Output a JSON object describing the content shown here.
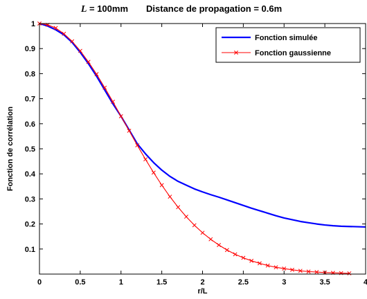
{
  "chart_data": {
    "type": "line",
    "title": {
      "symbol": "L",
      "eq": " = 100mm",
      "text": "Distance de propagation = 0.6m"
    },
    "xlabel": "r/L",
    "ylabel": "Fonction de corrélation",
    "xlim": [
      0,
      4
    ],
    "ylim": [
      0,
      1
    ],
    "xticks": [
      0,
      0.5,
      1,
      1.5,
      2,
      2.5,
      3,
      3.5,
      4
    ],
    "xtick_labels": [
      "0",
      "0.5",
      "1",
      "1.5",
      "2",
      "2.5",
      "3",
      "3.5",
      "4"
    ],
    "yticks": [
      0.1,
      0.2,
      0.3,
      0.4,
      0.5,
      0.6,
      0.7,
      0.8,
      0.9,
      1
    ],
    "ytick_labels": [
      "0.1",
      "0.2",
      "0.3",
      "0.4",
      "0.5",
      "0.6",
      "0.7",
      "0.8",
      "0.9",
      "1"
    ],
    "grid": false,
    "legend_position": "top-right",
    "series": [
      {
        "name": "Fonction simulée",
        "color": "#0000ff",
        "marker": "none",
        "x": [
          0,
          0.1,
          0.2,
          0.3,
          0.4,
          0.5,
          0.6,
          0.7,
          0.8,
          0.9,
          1.0,
          1.1,
          1.2,
          1.3,
          1.4,
          1.5,
          1.6,
          1.7,
          1.8,
          1.9,
          2.0,
          2.1,
          2.2,
          2.3,
          2.4,
          2.5,
          2.6,
          2.7,
          2.8,
          2.9,
          3.0,
          3.1,
          3.2,
          3.3,
          3.4,
          3.5,
          3.6,
          3.7,
          3.8,
          3.9,
          4.0
        ],
        "y": [
          1.0,
          0.99,
          0.975,
          0.955,
          0.925,
          0.885,
          0.84,
          0.79,
          0.735,
          0.68,
          0.63,
          0.575,
          0.52,
          0.48,
          0.445,
          0.415,
          0.39,
          0.37,
          0.355,
          0.34,
          0.328,
          0.317,
          0.307,
          0.296,
          0.285,
          0.274,
          0.263,
          0.253,
          0.243,
          0.233,
          0.224,
          0.217,
          0.21,
          0.205,
          0.2,
          0.196,
          0.193,
          0.191,
          0.19,
          0.189,
          0.188
        ]
      },
      {
        "name": "Fonction gaussienne",
        "color": "#ff0000",
        "marker": "x",
        "x": [
          0,
          0.1,
          0.2,
          0.3,
          0.4,
          0.5,
          0.6,
          0.7,
          0.8,
          0.9,
          1.0,
          1.1,
          1.2,
          1.3,
          1.4,
          1.5,
          1.6,
          1.7,
          1.8,
          1.9,
          2.0,
          2.1,
          2.2,
          2.3,
          2.4,
          2.5,
          2.6,
          2.7,
          2.8,
          2.9,
          3.0,
          3.1,
          3.2,
          3.3,
          3.4,
          3.5,
          3.6,
          3.7,
          3.8
        ],
        "y": [
          1.0,
          0.995,
          0.982,
          0.959,
          0.929,
          0.891,
          0.847,
          0.798,
          0.744,
          0.688,
          0.63,
          0.572,
          0.514,
          0.458,
          0.405,
          0.355,
          0.309,
          0.267,
          0.229,
          0.195,
          0.165,
          0.139,
          0.116,
          0.096,
          0.079,
          0.065,
          0.053,
          0.043,
          0.034,
          0.027,
          0.022,
          0.017,
          0.013,
          0.01,
          0.008,
          0.006,
          0.005,
          0.004,
          0.003
        ]
      }
    ]
  }
}
